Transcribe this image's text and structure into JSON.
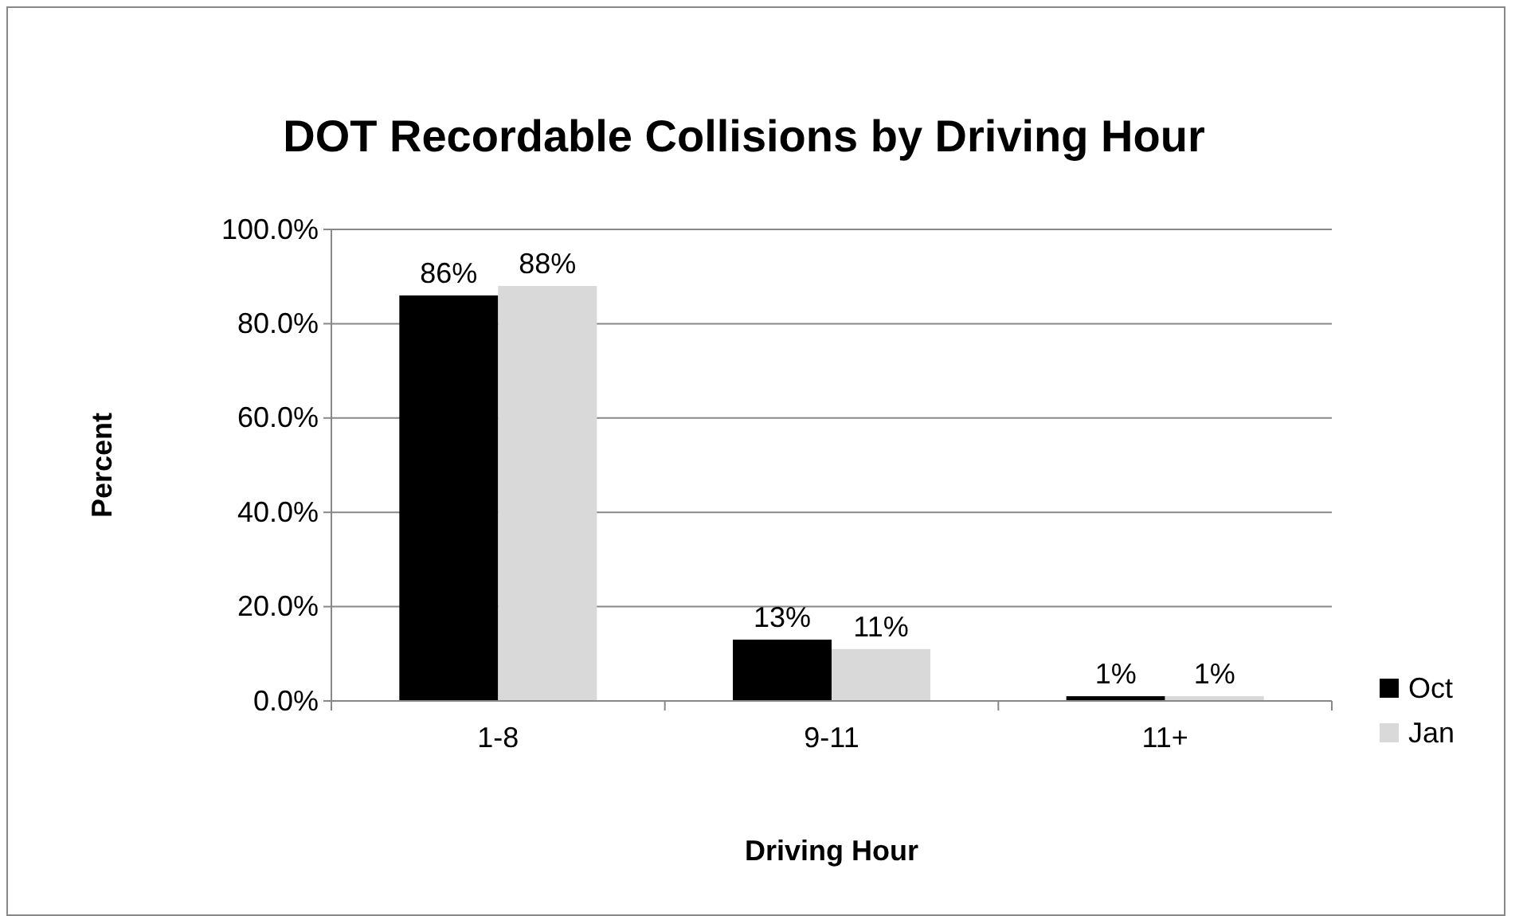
{
  "chart_data": {
    "type": "bar",
    "title": "DOT Recordable Collisions by Driving Hour",
    "xlabel": "Driving Hour",
    "ylabel": "Percent",
    "categories": [
      "1-8",
      "9-11",
      "11+"
    ],
    "series": [
      {
        "name": "Oct",
        "color": "#000000",
        "values": [
          86,
          13,
          1
        ],
        "value_labels": [
          "86%",
          "13%",
          "1%"
        ]
      },
      {
        "name": "Jan",
        "color": "#d9d9d9",
        "values": [
          88,
          11,
          1
        ],
        "value_labels": [
          "88%",
          "11%",
          "1%"
        ]
      }
    ],
    "ylim": [
      0,
      100
    ],
    "yticks": [
      {
        "value": 0,
        "label": "0.0%"
      },
      {
        "value": 20,
        "label": "20.0%"
      },
      {
        "value": 40,
        "label": "40.0%"
      },
      {
        "value": 60,
        "label": "60.0%"
      },
      {
        "value": 80,
        "label": "80.0%"
      },
      {
        "value": 100,
        "label": "100.0%"
      }
    ],
    "grid": "y",
    "legend": "right"
  }
}
